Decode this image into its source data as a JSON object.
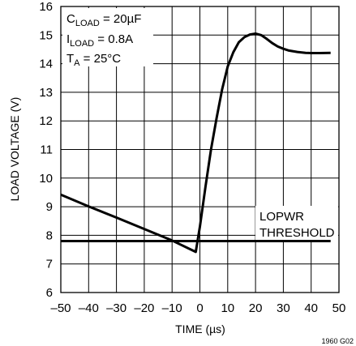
{
  "chart_data": {
    "type": "line",
    "xlabel": "TIME (µs)",
    "ylabel": "LOAD VOLTAGE (V)",
    "xlim": [
      -50,
      50
    ],
    "ylim": [
      6,
      16
    ],
    "xticks": [
      "–50",
      "–40",
      "–30",
      "–20",
      "–10",
      "0",
      "10",
      "20",
      "30",
      "40",
      "50"
    ],
    "yticks": [
      "6",
      "7",
      "8",
      "9",
      "10",
      "11",
      "12",
      "13",
      "14",
      "15",
      "16"
    ],
    "grid": true,
    "series": [
      {
        "name": "",
        "x": [
          -50,
          -40,
          -30,
          -20,
          -10,
          -1.5,
          0,
          2,
          4,
          6,
          8,
          10,
          12,
          14,
          16,
          18,
          20,
          22,
          24,
          26,
          28,
          30,
          32,
          35,
          38,
          40,
          43,
          47
        ],
        "y": [
          9.42,
          9.01,
          8.62,
          8.22,
          7.82,
          7.42,
          8.3,
          9.7,
          11.0,
          12.1,
          13.1,
          13.9,
          14.4,
          14.75,
          14.93,
          15.02,
          15.05,
          15.0,
          14.87,
          14.72,
          14.6,
          14.52,
          14.46,
          14.41,
          14.38,
          14.37,
          14.37,
          14.38
        ]
      },
      {
        "name": "LOPWR THRESHOLD",
        "x": [
          -50,
          47
        ],
        "y": [
          7.8,
          7.8
        ]
      }
    ],
    "annotations": {
      "cload_main": "C",
      "cload_sub": "LOAD",
      "cload_val": " = 20µF",
      "iload_main": "I",
      "iload_sub": "LOAD",
      "iload_val": " = 0.8A",
      "ta_main": "T",
      "ta_sub": "A",
      "ta_val": " = 25°C",
      "threshold_line1": "LOPWR",
      "threshold_line2": "THRESHOLD"
    },
    "footnote": "1960 G02"
  }
}
